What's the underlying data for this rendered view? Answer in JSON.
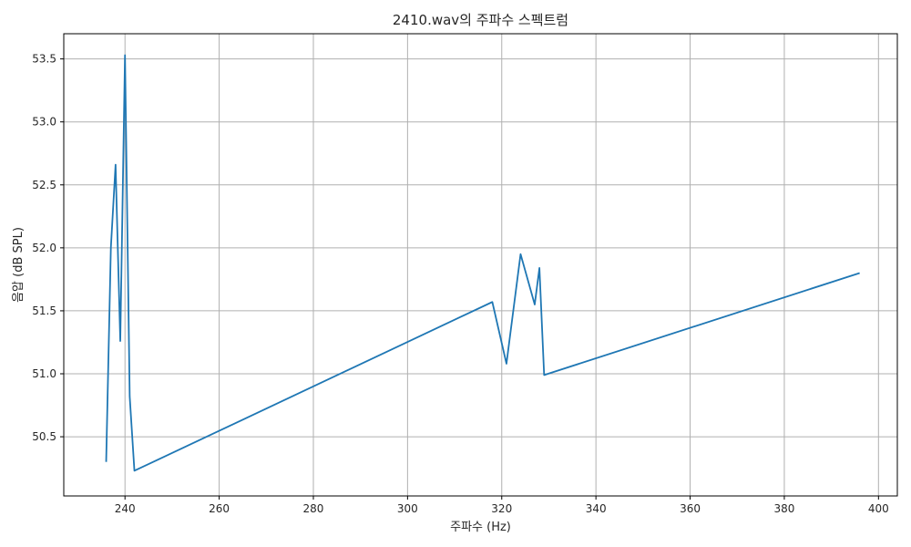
{
  "chart_data": {
    "type": "line",
    "title": "2410.wav의 주파수 스펙트럼",
    "xlabel": "주파수 (Hz)",
    "ylabel": "음압 (dB SPL)",
    "xlim": [
      227,
      404
    ],
    "ylim": [
      50.03,
      53.7
    ],
    "x_ticks": [
      240,
      260,
      280,
      300,
      320,
      340,
      360,
      380,
      400
    ],
    "y_ticks": [
      50.5,
      51.0,
      51.5,
      52.0,
      52.5,
      53.0,
      53.5
    ],
    "x_tick_labels": [
      "240",
      "260",
      "280",
      "300",
      "320",
      "340",
      "360",
      "380",
      "400"
    ],
    "y_tick_labels": [
      "50.5",
      "51.0",
      "51.5",
      "52.0",
      "52.5",
      "53.0",
      "53.5"
    ],
    "grid": true,
    "series": [
      {
        "color": "#1f77b4",
        "x": [
          236,
          237,
          238,
          239,
          240,
          241,
          242,
          318,
          321,
          324,
          327,
          328,
          329,
          396
        ],
        "y": [
          50.3,
          52.0,
          52.66,
          51.26,
          53.53,
          50.82,
          50.23,
          51.57,
          51.08,
          51.95,
          51.55,
          51.84,
          50.99,
          51.8
        ]
      }
    ]
  }
}
